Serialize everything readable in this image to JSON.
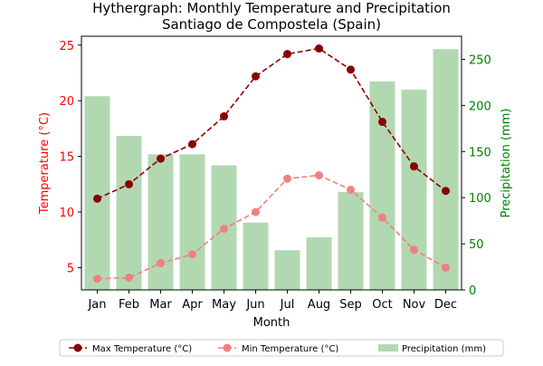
{
  "chart_data": {
    "type": "bar+line",
    "title": "Hythergraph: Monthly Temperature and Precipitation\nSantiago de Compostela (Spain)",
    "title_lines": [
      "Hythergraph: Monthly Temperature and Precipitation",
      "Santiago de Compostela (Spain)"
    ],
    "xlabel": "Month",
    "categories": [
      "Jan",
      "Feb",
      "Mar",
      "Apr",
      "May",
      "Jun",
      "Jul",
      "Aug",
      "Sep",
      "Oct",
      "Nov",
      "Dec"
    ],
    "y_left": {
      "label": "Temperature (°C)",
      "color": "#ff0000",
      "ylim": [
        3.0,
        25.8
      ],
      "ticks": [
        5,
        10,
        15,
        20,
        25
      ]
    },
    "y_right": {
      "label": "Precipitation (mm)",
      "color": "#008000",
      "ylim": [
        0,
        275
      ],
      "ticks": [
        0,
        50,
        100,
        150,
        200,
        250
      ]
    },
    "series": [
      {
        "name": "Max Temperature (°C)",
        "type": "line",
        "axis": "left",
        "color": "#8b0000",
        "dashed": true,
        "values": [
          11.2,
          12.5,
          14.8,
          16.1,
          18.6,
          22.2,
          24.2,
          24.7,
          22.8,
          18.1,
          14.1,
          11.9
        ]
      },
      {
        "name": "Min Temperature (°C)",
        "type": "line",
        "axis": "left",
        "color": "#f08080",
        "dashed": true,
        "values": [
          4.0,
          4.1,
          5.4,
          6.2,
          8.5,
          10.0,
          13.0,
          13.3,
          12.0,
          9.5,
          6.6,
          5.0
        ]
      },
      {
        "name": "Precipitation (mm)",
        "type": "bar",
        "axis": "right",
        "color": "#b2d8b2",
        "values": [
          210,
          167,
          147,
          147,
          135,
          73,
          43,
          57,
          106,
          226,
          217,
          261
        ]
      }
    ],
    "legend": {
      "position": "bottom-center",
      "entries": [
        "Max Temperature (°C)",
        "Min Temperature (°C)",
        "Precipitation (mm)"
      ]
    },
    "grid": false
  }
}
